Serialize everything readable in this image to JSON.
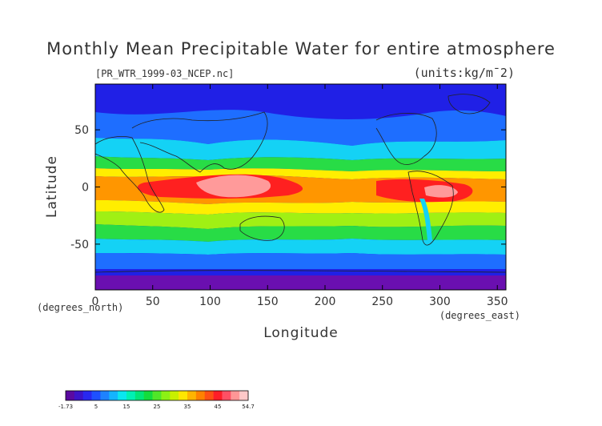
{
  "title": "Monthly Mean Precipitable Water for entire atmosphere",
  "file_label": "[PR_WTR_1999-03_NCEP.nc]",
  "units_label": "(units:kg/m¯2)",
  "x_axis": {
    "label": "Longitude",
    "units": "(degrees_east)",
    "ticks": [
      "0",
      "50",
      "100",
      "150",
      "200",
      "250",
      "300",
      "350"
    ],
    "range": [
      0,
      357.5
    ]
  },
  "y_axis": {
    "label": "Latitude",
    "units": "(degrees_north)",
    "ticks": [
      "50",
      "0",
      "-50"
    ],
    "range": [
      -90,
      90
    ]
  },
  "colorbar": {
    "tick_labels": [
      "-1.73",
      "5",
      "15",
      "25",
      "35",
      "45",
      "54.7"
    ],
    "colors": [
      "#5a0aa0",
      "#3c14c8",
      "#2828f0",
      "#1e50ff",
      "#1e82ff",
      "#14b4ff",
      "#0ae6f0",
      "#00f0b4",
      "#00e678",
      "#14dc3c",
      "#50e628",
      "#8cf014",
      "#c8f000",
      "#ffe600",
      "#ffb400",
      "#ff8200",
      "#ff5014",
      "#ff1e28",
      "#ff5064",
      "#ff9696",
      "#ffc8c8"
    ]
  },
  "map_colors": {
    "polar_purple": "#6a0fb0",
    "deep_blue": "#2020e6",
    "blue": "#1e6eff",
    "cyan": "#14d2f5",
    "teal": "#00e6b4",
    "green": "#28dc46",
    "lime": "#a0f014",
    "yellow": "#ffee00",
    "orange": "#ff9600",
    "red": "#ff2020",
    "pink": "#ff9a9a",
    "coast": "#222222"
  }
}
